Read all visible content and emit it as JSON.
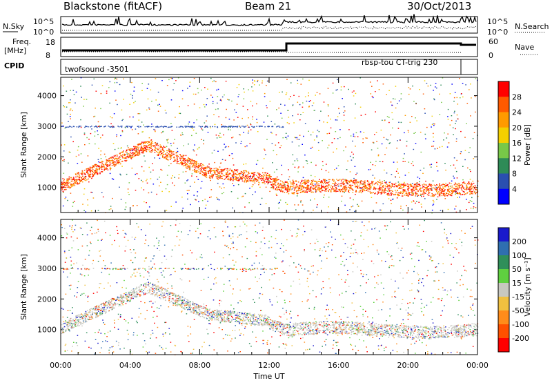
{
  "header": {
    "title": "Blackstone (fitACF)",
    "beam": "Beam 21",
    "date": "30/Oct/2013"
  },
  "top_panels": {
    "nsky_label": "N.Sky",
    "nsky_ticks": [
      "10^5",
      "10^0"
    ],
    "nsearch_label": "N.Search",
    "nsearch_ticks": [
      "10^5",
      "10^0"
    ],
    "freq_label": "Freq.",
    "freq_unit": "[MHz]",
    "freq_ticks": [
      "18",
      "8"
    ],
    "nave_label": "Nave",
    "nave_ticks": [
      "60",
      "0"
    ],
    "cpid_label": "CPID",
    "cpid_left": "twofsound -3501",
    "cpid_right": "rbsp-tou CT-trig 230"
  },
  "chart_data": [
    {
      "type": "heatmap",
      "name": "power",
      "ylabel": "Slant Range [km]",
      "yticks": [
        1000,
        2000,
        3000,
        4000
      ],
      "ylim": [
        180,
        4600
      ],
      "xticks": [
        "00:00",
        "04:00",
        "08:00",
        "12:00",
        "16:00",
        "20:00",
        "00:00"
      ],
      "xlim_hours": [
        0,
        24
      ],
      "colorbar_label": "Power [dB]",
      "colorbar_ticks": [
        "28",
        "24",
        "20",
        "16",
        "12",
        "8",
        "4"
      ],
      "colorbar_colors": [
        "#ff0000",
        "#ff5a00",
        "#ff9a00",
        "#f4d000",
        "#78c848",
        "#2e8b57",
        "#2a4fb0",
        "#0000ff"
      ]
    },
    {
      "type": "heatmap",
      "name": "velocity",
      "ylabel": "Slant Range [km]",
      "yticks": [
        1000,
        2000,
        3000,
        4000
      ],
      "ylim": [
        180,
        4600
      ],
      "xticks": [
        "00:00",
        "04:00",
        "08:00",
        "12:00",
        "16:00",
        "20:00",
        "00:00"
      ],
      "xlabel": "Time UT",
      "xlim_hours": [
        0,
        24
      ],
      "colorbar_label": "Velocity [m s⁻¹]",
      "colorbar_ticks": [
        "200",
        "100",
        "50",
        "15",
        "-15",
        "-50",
        "-100",
        "-200"
      ],
      "colorbar_colors": [
        "#1a1acc",
        "#2f6fb0",
        "#2f8f5a",
        "#5fd040",
        "#c8c8c0",
        "#f0c040",
        "#ff8c1a",
        "#ff5000",
        "#ff0000"
      ]
    }
  ]
}
